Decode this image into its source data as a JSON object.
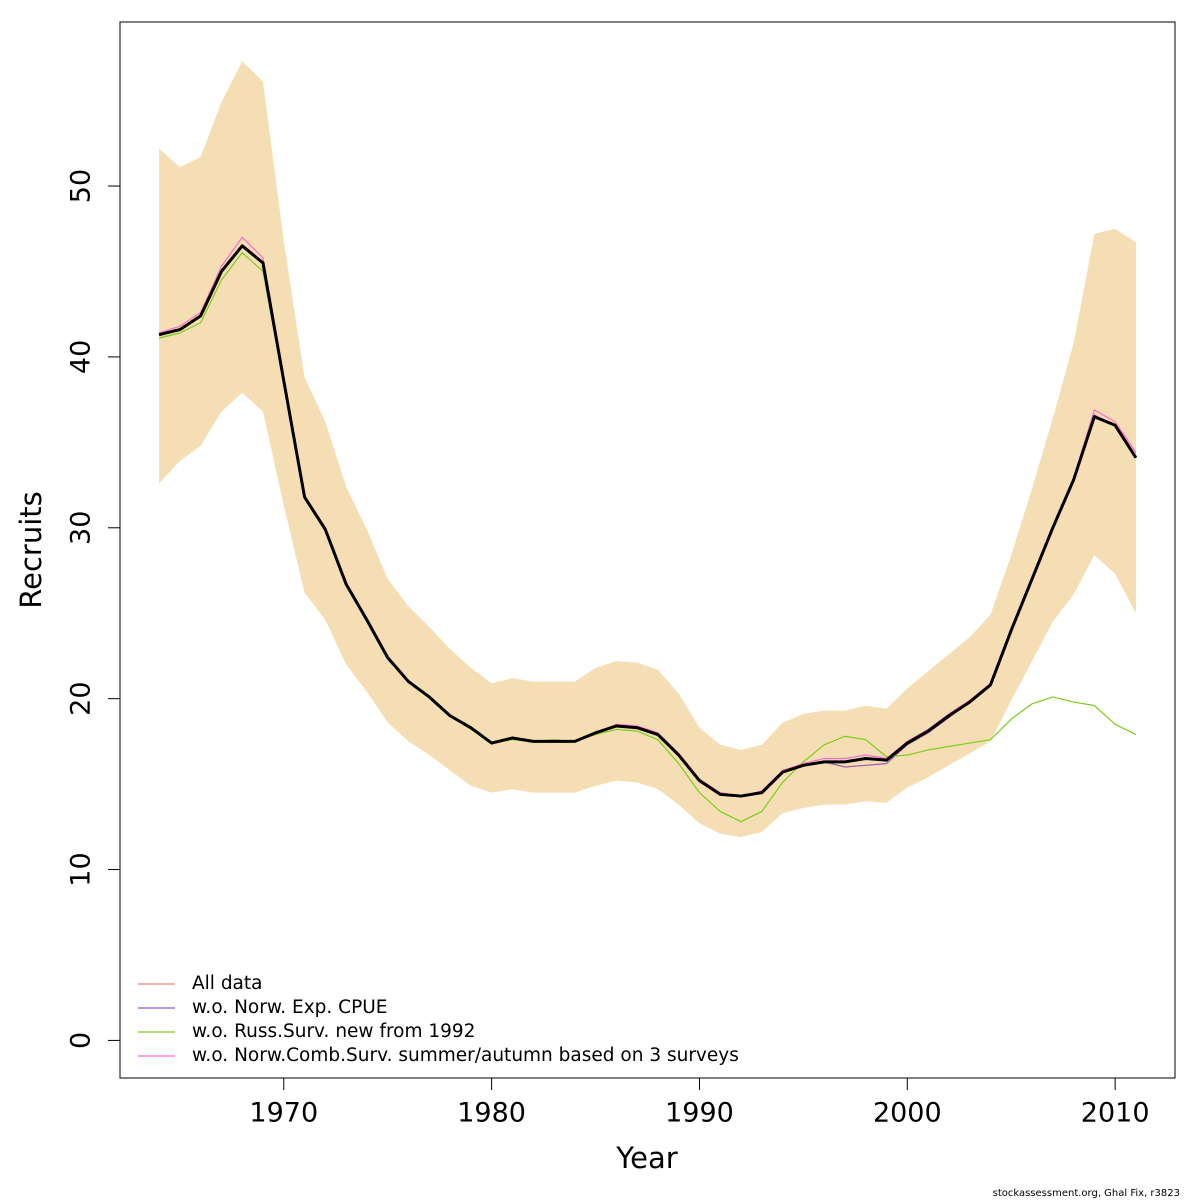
{
  "chart_data": {
    "type": "line",
    "xlabel": "Year",
    "ylabel": "Recruits",
    "footer": "stockassessment.org, Ghal Fix, r3823",
    "xlim": [
      1962.12,
      2012.88
    ],
    "ylim": [
      -2.2,
      59.6
    ],
    "xticks": [
      1970,
      1980,
      1990,
      2000,
      2010
    ],
    "yticks": [
      0,
      10,
      20,
      30,
      40,
      50
    ],
    "legend": "bottom-left",
    "x": [
      1964,
      1965,
      1966,
      1967,
      1968,
      1969,
      1970,
      1971,
      1972,
      1973,
      1974,
      1975,
      1976,
      1977,
      1978,
      1979,
      1980,
      1981,
      1982,
      1983,
      1984,
      1985,
      1986,
      1987,
      1988,
      1989,
      1990,
      1991,
      1992,
      1993,
      1994,
      1995,
      1996,
      1997,
      1998,
      1999,
      2000,
      2001,
      2002,
      2003,
      2004,
      2005,
      2006,
      2007,
      2008,
      2009,
      2010,
      2011
    ],
    "band": {
      "color": "#f5deb3",
      "upper": [
        52.2,
        51.1,
        51.7,
        54.9,
        57.3,
        56.1,
        46.8,
        38.8,
        36.2,
        32.4,
        29.9,
        27.0,
        25.4,
        24.2,
        22.9,
        21.8,
        20.9,
        21.2,
        21.0,
        21.0,
        21.0,
        21.8,
        22.2,
        22.1,
        21.7,
        20.3,
        18.3,
        17.3,
        17.0,
        17.3,
        18.6,
        19.1,
        19.3,
        19.3,
        19.6,
        19.4,
        20.6,
        21.6,
        22.6,
        23.6,
        24.9,
        28.4,
        32.3,
        36.4,
        40.8,
        47.2,
        47.5,
        46.7
      ],
      "lower": [
        32.6,
        33.9,
        34.8,
        36.8,
        37.9,
        36.8,
        31.3,
        26.2,
        24.6,
        22.0,
        20.4,
        18.6,
        17.5,
        16.7,
        15.8,
        14.9,
        14.5,
        14.7,
        14.5,
        14.5,
        14.5,
        14.9,
        15.2,
        15.1,
        14.7,
        13.8,
        12.7,
        12.1,
        11.9,
        12.2,
        13.3,
        13.6,
        13.8,
        13.8,
        14.0,
        13.9,
        14.8,
        15.4,
        16.1,
        16.8,
        17.5,
        19.9,
        22.2,
        24.5,
        26.1,
        28.4,
        27.3,
        25.0
      ]
    },
    "series": [
      {
        "name": "All data",
        "color": "#f08080",
        "values": [
          41.3,
          41.6,
          42.4,
          45.0,
          46.5,
          45.5,
          38.6,
          31.8,
          29.9,
          26.7,
          24.6,
          22.4,
          21.0,
          20.1,
          19.0,
          18.3,
          17.4,
          17.7,
          17.5,
          17.5,
          17.5,
          18.0,
          18.4,
          18.3,
          17.9,
          16.7,
          15.2,
          14.4,
          14.3,
          14.5,
          15.7,
          16.1,
          16.3,
          16.3,
          16.5,
          16.4,
          17.4,
          18.1,
          19.0,
          19.8,
          20.8,
          24.0,
          27.0,
          30.0,
          32.8,
          36.5,
          36.0,
          34.1
        ]
      },
      {
        "name": "w.o. Norw. Exp. CPUE",
        "color": "#9b59b6",
        "values": [
          41.3,
          41.6,
          42.4,
          45.0,
          46.5,
          45.5,
          38.6,
          31.8,
          29.9,
          26.7,
          24.6,
          22.4,
          21.0,
          20.1,
          19.0,
          18.3,
          17.4,
          17.7,
          17.5,
          17.5,
          17.5,
          18.0,
          18.4,
          18.3,
          17.9,
          16.7,
          15.2,
          14.4,
          14.3,
          14.5,
          15.7,
          16.1,
          16.3,
          16.0,
          16.1,
          16.2,
          17.3,
          18.0,
          18.9,
          19.8,
          20.8,
          24.0,
          27.0,
          30.0,
          32.8,
          36.6,
          36.0,
          34.1
        ]
      },
      {
        "name": "w.o. Russ.Surv. new from 1992",
        "color": "#7ccd1c",
        "values": [
          41.1,
          41.4,
          42.0,
          44.5,
          46.1,
          45.0,
          38.4,
          31.7,
          29.8,
          26.6,
          24.5,
          22.3,
          21.0,
          20.1,
          19.0,
          18.2,
          17.4,
          17.6,
          17.5,
          17.6,
          17.5,
          17.9,
          18.2,
          18.1,
          17.6,
          16.2,
          14.5,
          13.4,
          12.8,
          13.4,
          15.1,
          16.3,
          17.3,
          17.8,
          17.6,
          16.6,
          16.7,
          17.0,
          17.2,
          17.4,
          17.6,
          18.8,
          19.7,
          20.1,
          19.8,
          19.6,
          18.5,
          17.9
        ]
      },
      {
        "name": "w.o. Norw.Comb.Surv. summer/autumn based on 3 surveys",
        "color": "#ff69d4",
        "values": [
          41.4,
          41.8,
          42.6,
          45.3,
          47.0,
          45.8,
          38.8,
          31.9,
          30.0,
          26.7,
          24.6,
          22.4,
          21.0,
          20.1,
          19.0,
          18.3,
          17.4,
          17.7,
          17.5,
          17.5,
          17.5,
          18.0,
          18.5,
          18.4,
          18.0,
          16.8,
          15.3,
          14.5,
          14.3,
          14.6,
          15.8,
          16.2,
          16.5,
          16.5,
          16.7,
          16.5,
          17.5,
          18.2,
          19.1,
          19.9,
          20.9,
          24.1,
          27.1,
          30.1,
          32.9,
          36.9,
          36.2,
          34.4
        ]
      }
    ],
    "estimate": {
      "color": "#000000",
      "values": [
        41.3,
        41.6,
        42.4,
        45.0,
        46.5,
        45.5,
        38.6,
        31.8,
        29.9,
        26.7,
        24.6,
        22.4,
        21.0,
        20.1,
        19.0,
        18.3,
        17.4,
        17.7,
        17.5,
        17.5,
        17.5,
        18.0,
        18.4,
        18.3,
        17.9,
        16.7,
        15.2,
        14.4,
        14.3,
        14.5,
        15.7,
        16.1,
        16.3,
        16.3,
        16.5,
        16.4,
        17.4,
        18.1,
        19.0,
        19.8,
        20.8,
        24.0,
        27.0,
        30.0,
        32.8,
        36.5,
        36.0,
        34.1
      ]
    }
  }
}
